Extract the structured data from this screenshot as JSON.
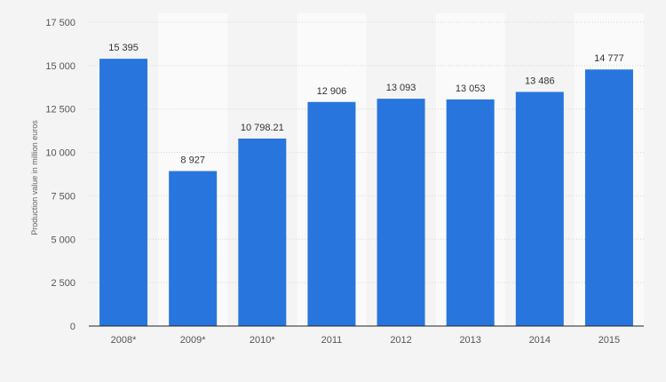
{
  "chart_data": {
    "type": "bar",
    "title": "",
    "xlabel": "",
    "ylabel": "Production value in million euros",
    "categories": [
      "2008*",
      "2009*",
      "2010*",
      "2011",
      "2012",
      "2013",
      "2014",
      "2015"
    ],
    "values": [
      15395,
      8927,
      10798.21,
      12906,
      13093,
      13053,
      13486,
      14777
    ],
    "value_labels": [
      "15 395",
      "8 927",
      "10 798.21",
      "12 906",
      "13 093",
      "13 053",
      "13 486",
      "14 777"
    ],
    "ylim": [
      0,
      17500
    ],
    "yticks": [
      0,
      2500,
      5000,
      7500,
      10000,
      12500,
      15000,
      17500
    ],
    "ytick_labels": [
      "0",
      "2 500",
      "5 000",
      "7 500",
      "10 000",
      "12 500",
      "15 000",
      "17 500"
    ],
    "grid": true,
    "legend": null,
    "bar_color": "#2876dd"
  }
}
